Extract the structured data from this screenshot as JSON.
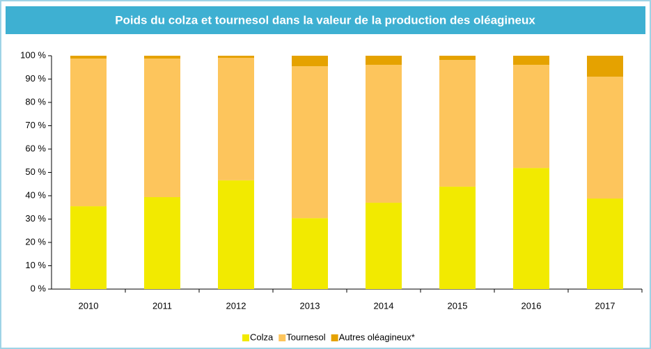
{
  "chart_data": {
    "type": "stacked_bar",
    "title": "Poids du colza et tournesol dans la valeur de la production des oléagineux",
    "categories": [
      "2010",
      "2011",
      "2012",
      "2013",
      "2014",
      "2015",
      "2016",
      "2017"
    ],
    "series": [
      {
        "name": "Colza",
        "color": "#f2ea00",
        "values": [
          35.5,
          39.4,
          46.6,
          30.4,
          37,
          43.9,
          51.9,
          38.8
        ]
      },
      {
        "name": "Tournesol",
        "color": "#fdc55c",
        "values": [
          63.3,
          59.4,
          52.5,
          65.1,
          59.1,
          54.3,
          44.2,
          52.2
        ]
      },
      {
        "name": "Autres oléagineux*",
        "color": "#e5a200",
        "values": [
          1.2,
          1.2,
          0.9,
          4.5,
          3.9,
          1.8,
          3.9,
          9
        ]
      }
    ],
    "ylim": [
      0,
      100
    ],
    "yticks": [
      {
        "value": 0,
        "label": "0 %"
      },
      {
        "value": 10,
        "label": "10 %"
      },
      {
        "value": 20,
        "label": "20 %"
      },
      {
        "value": 30,
        "label": "30 %"
      },
      {
        "value": 40,
        "label": "40 %"
      },
      {
        "value": 50,
        "label": "50 %"
      },
      {
        "value": 60,
        "label": "60 %"
      },
      {
        "value": 70,
        "label": "70 %"
      },
      {
        "value": 80,
        "label": "80 %"
      },
      {
        "value": 90,
        "label": "90 %"
      },
      {
        "value": 100,
        "label": "100 %"
      }
    ],
    "legend": "bottom"
  }
}
